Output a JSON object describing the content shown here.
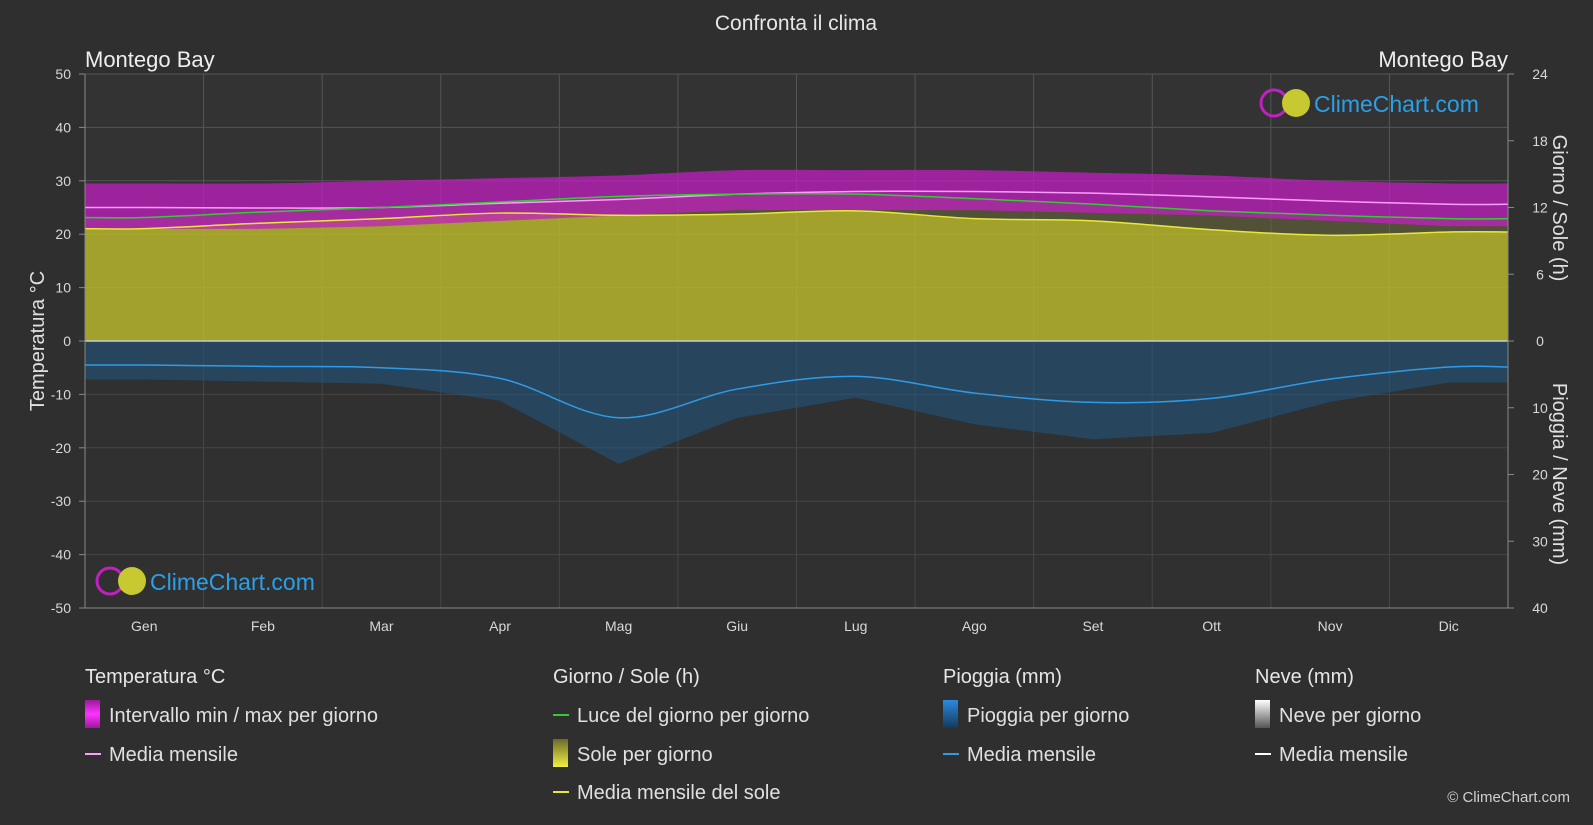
{
  "chart_data": {
    "type": "area",
    "title": "Confronta il clima",
    "location_left": "Montego Bay",
    "location_right": "Montego Bay",
    "watermark": "ClimeChart.com",
    "copyright": "© ClimeChart.com",
    "y_left": {
      "label": "Temperatura °C",
      "min": -50,
      "max": 50,
      "ticks": [
        50,
        40,
        30,
        20,
        10,
        0,
        -10,
        -20,
        -30,
        -40,
        -50
      ]
    },
    "y_right_top": {
      "label": "Giorno / Sole (h)",
      "min": 0,
      "max": 24,
      "ticks": [
        24,
        18,
        12,
        6,
        0
      ]
    },
    "y_right_bottom": {
      "label": "Pioggia / Neve (mm)",
      "min": 0,
      "max": 40,
      "ticks": [
        0,
        10,
        20,
        30,
        40
      ]
    },
    "months": [
      "Gen",
      "Feb",
      "Mar",
      "Apr",
      "Mag",
      "Giu",
      "Lug",
      "Ago",
      "Set",
      "Ott",
      "Nov",
      "Dic"
    ],
    "series": [
      {
        "key": "temp_max",
        "values": [
          29.5,
          29.5,
          30.0,
          30.5,
          31.0,
          32.0,
          32.0,
          32.0,
          31.5,
          31.0,
          30.0,
          29.5
        ]
      },
      {
        "key": "temp_min",
        "values": [
          21.0,
          21.0,
          21.5,
          22.5,
          23.5,
          24.5,
          24.5,
          24.5,
          24.0,
          23.5,
          22.5,
          21.5
        ]
      },
      {
        "key": "temp_mean",
        "values": [
          25.0,
          24.9,
          25.0,
          25.8,
          26.5,
          27.5,
          28.0,
          28.0,
          27.7,
          27.0,
          26.2,
          25.6
        ]
      },
      {
        "key": "daylight_h",
        "values": [
          11.1,
          11.6,
          12.0,
          12.5,
          13.0,
          13.2,
          13.2,
          12.8,
          12.3,
          11.7,
          11.3,
          11.0
        ]
      },
      {
        "key": "sunshine_h",
        "values": [
          10.1,
          10.6,
          11.0,
          11.5,
          11.3,
          11.4,
          11.7,
          11.0,
          10.8,
          10.0,
          9.5,
          9.8
        ]
      },
      {
        "key": "rain_mean_mm",
        "values": [
          3.6,
          3.8,
          4.0,
          5.6,
          11.5,
          7.2,
          5.3,
          7.8,
          9.2,
          8.6,
          5.7,
          3.9
        ]
      }
    ],
    "legend": {
      "temperature": {
        "title": "Temperatura °C",
        "range": "Intervallo min / max per giorno",
        "mean": "Media mensile"
      },
      "sun": {
        "title": "Giorno / Sole (h)",
        "daylight": "Luce del giorno per giorno",
        "sunshine": "Sole per giorno",
        "sun_mean": "Media mensile del sole"
      },
      "rain": {
        "title": "Pioggia (mm)",
        "daily": "Pioggia per giorno",
        "mean": "Media mensile"
      },
      "snow": {
        "title": "Neve (mm)",
        "daily": "Neve per giorno",
        "mean": "Media mensile"
      }
    },
    "colors": {
      "background": "#2f2f2f",
      "temp_band": "#c21fc2",
      "temp_mean": "#ff9cff",
      "daylight": "#33cc33",
      "sunshine": "#b5b52a",
      "sun_mean": "#e8e83a",
      "rain": "#1c6fb0",
      "rain_mean": "#2f9be8",
      "snow_mean": "#ffffff"
    }
  }
}
